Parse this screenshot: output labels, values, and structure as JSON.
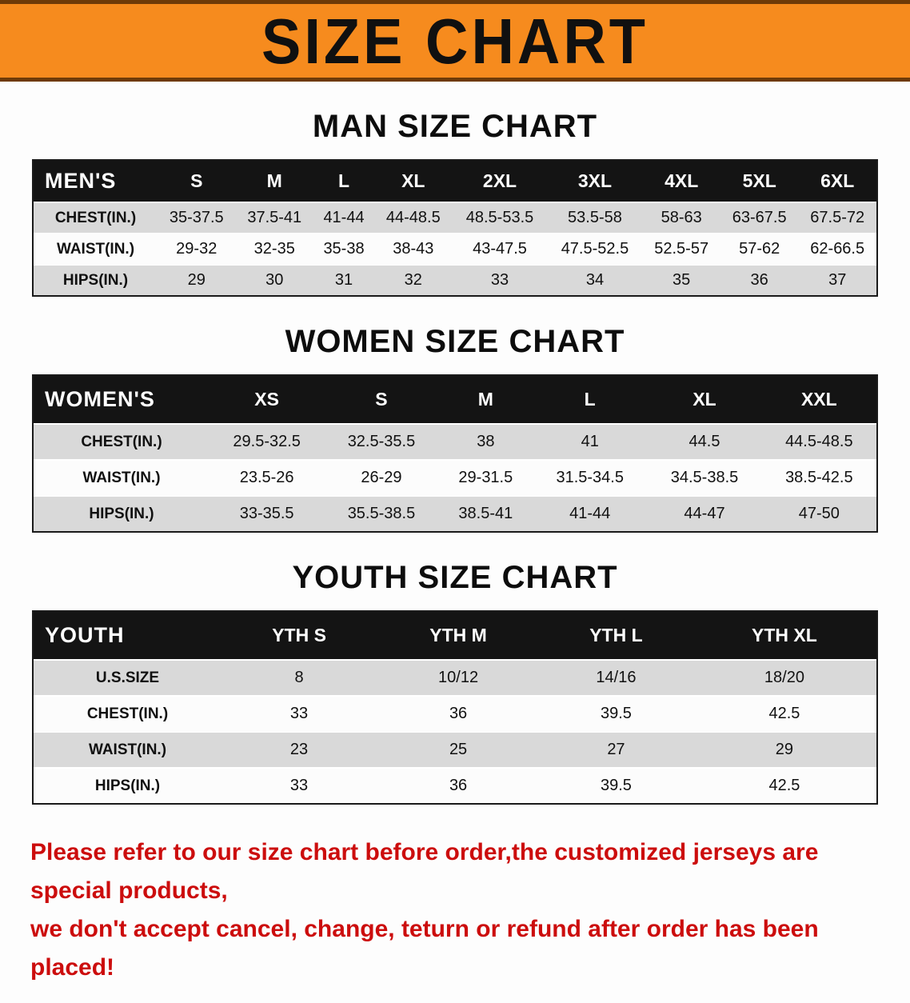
{
  "banner": {
    "title": "SIZE CHART"
  },
  "sections": [
    {
      "heading": "MAN SIZE CHART",
      "table": {
        "header": [
          "MEN'S",
          "S",
          "M",
          "L",
          "XL",
          "2XL",
          "3XL",
          "4XL",
          "5XL",
          "6XL"
        ],
        "rows": [
          [
            "CHEST(IN.)",
            "35-37.5",
            "37.5-41",
            "41-44",
            "44-48.5",
            "48.5-53.5",
            "53.5-58",
            "58-63",
            "63-67.5",
            "67.5-72"
          ],
          [
            "WAIST(IN.)",
            "29-32",
            "32-35",
            "35-38",
            "38-43",
            "43-47.5",
            "47.5-52.5",
            "52.5-57",
            "57-62",
            "62-66.5"
          ],
          [
            "HIPS(IN.)",
            "29",
            "30",
            "31",
            "32",
            "33",
            "34",
            "35",
            "36",
            "37"
          ]
        ]
      }
    },
    {
      "heading": "WOMEN SIZE CHART",
      "table": {
        "header": [
          "WOMEN'S",
          "XS",
          "S",
          "M",
          "L",
          "XL",
          "XXL"
        ],
        "rows": [
          [
            "CHEST(IN.)",
            "29.5-32.5",
            "32.5-35.5",
            "38",
            "41",
            "44.5",
            "44.5-48.5"
          ],
          [
            "WAIST(IN.)",
            "23.5-26",
            "26-29",
            "29-31.5",
            "31.5-34.5",
            "34.5-38.5",
            "38.5-42.5"
          ],
          [
            "HIPS(IN.)",
            "33-35.5",
            "35.5-38.5",
            "38.5-41",
            "41-44",
            "44-47",
            "47-50"
          ]
        ]
      }
    },
    {
      "heading": "YOUTH SIZE CHART",
      "table": {
        "header": [
          "YOUTH",
          "YTH S",
          "YTH M",
          "YTH L",
          "YTH XL"
        ],
        "rows": [
          [
            "U.S.SIZE",
            "8",
            "10/12",
            "14/16",
            "18/20"
          ],
          [
            "CHEST(IN.)",
            "33",
            "36",
            "39.5",
            "42.5"
          ],
          [
            "WAIST(IN.)",
            "23",
            "25",
            "27",
            "29"
          ],
          [
            "HIPS(IN.)",
            "33",
            "36",
            "39.5",
            "42.5"
          ]
        ]
      }
    }
  ],
  "disclaimer": {
    "line1": "Please refer to our size chart before order,the customized jerseys are special products,",
    "line2": "we don't accept cancel, change, teturn or refund after order has been placed!"
  },
  "colors": {
    "banner-bg": "#f68b1e",
    "banner-border": "#6e3a07",
    "title-text": "#101010",
    "table-header-bg": "#141414",
    "table-header-text": "#ffffff",
    "row-shade": "#d9d9d9",
    "row-plain": "#fcfcfc",
    "disclaimer-red": "#cc0d0d"
  }
}
